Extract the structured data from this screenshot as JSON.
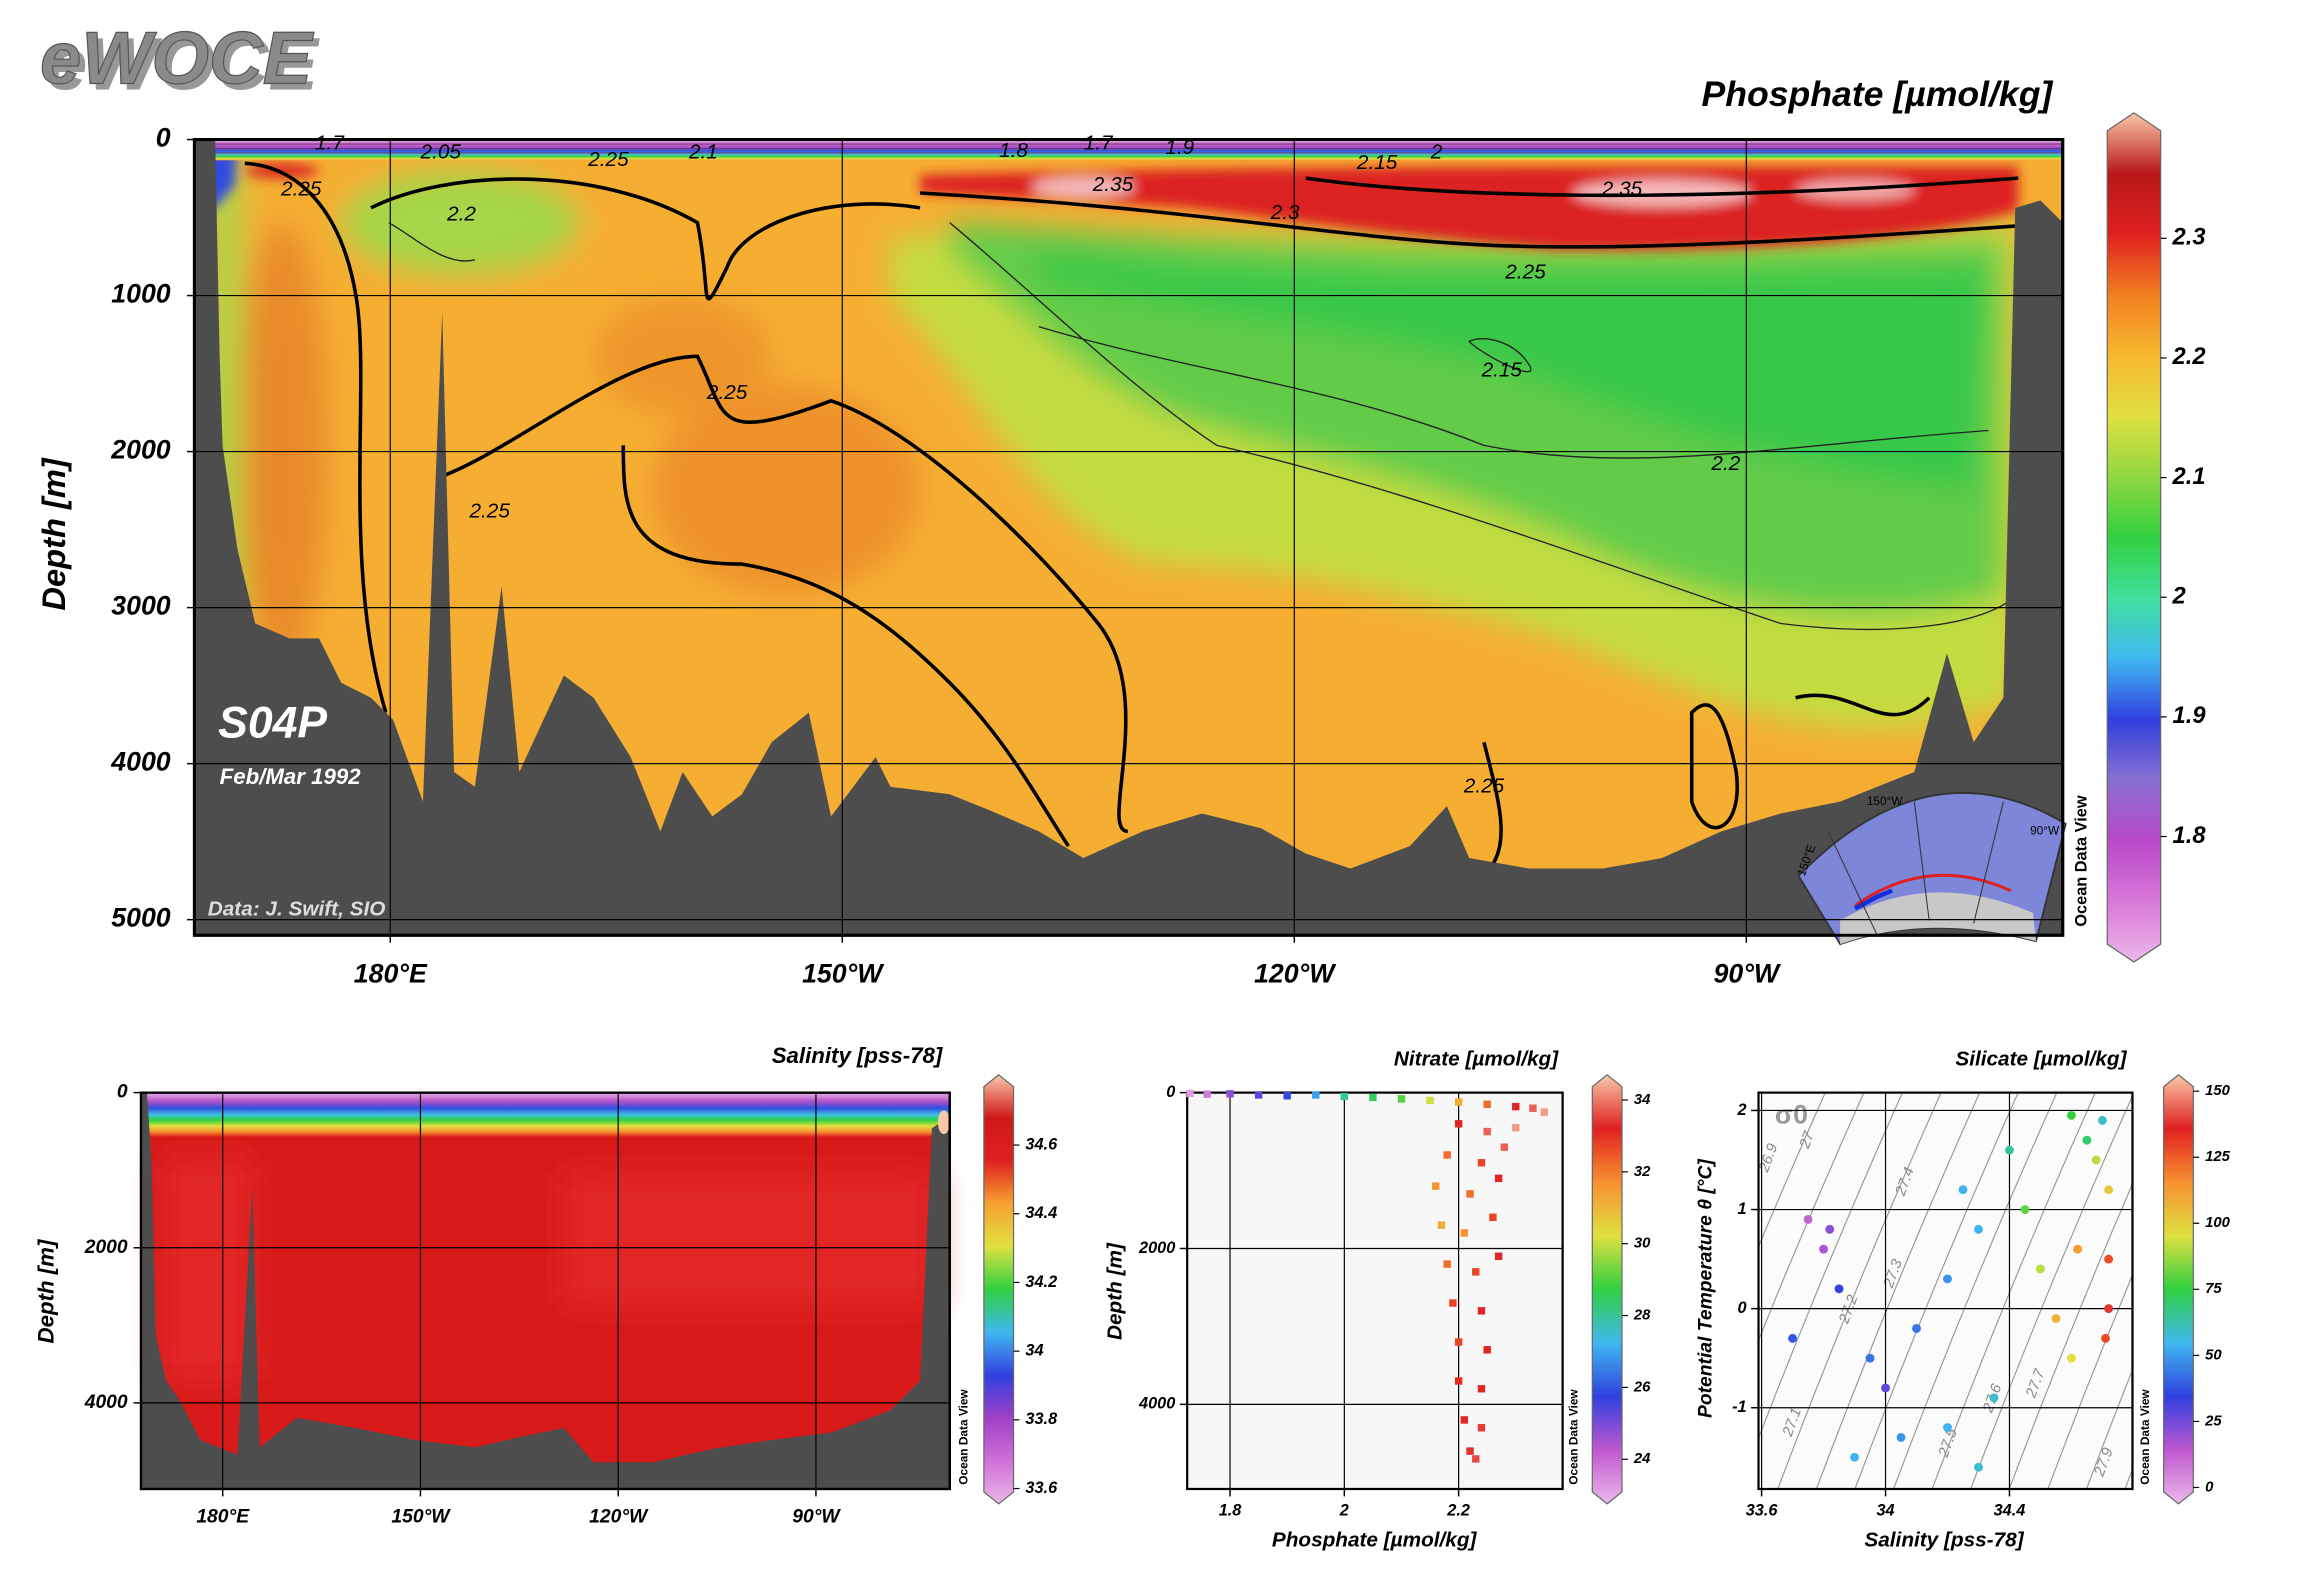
{
  "logo": "eWOCE",
  "chart_data": [
    {
      "type": "section",
      "title": "Phosphate [µmol/kg]",
      "y_label": "Depth [m]",
      "xlim": [
        167,
        291
      ],
      "xticks": [
        {
          "value": 180,
          "label": "180°E"
        },
        {
          "value": 210,
          "label": "150°W"
        },
        {
          "value": 240,
          "label": "120°W"
        },
        {
          "value": 270,
          "label": "90°W"
        }
      ],
      "ylim": [
        0,
        5100
      ],
      "yticks": [
        0,
        1000,
        2000,
        3000,
        4000,
        5000
      ],
      "y_inverted": true,
      "grid": true,
      "clim": [
        1.71,
        2.39
      ],
      "cticks": [
        1.8,
        1.9,
        2,
        2.1,
        2.2,
        2.3
      ],
      "colormap": [
        "#eab8ea",
        "#d878d8",
        "#b848c8",
        "#8870d0",
        "#3040e0",
        "#40b8f0",
        "#40e0a0",
        "#30d040",
        "#90d840",
        "#e0e040",
        "#f8b830",
        "#f08020",
        "#e02020",
        "#b81818",
        "#f8c8a8"
      ],
      "contour_labels": [
        1.7,
        2.05,
        2.25,
        2.1,
        1.8,
        1.7,
        1.9,
        2.15,
        2,
        2.35,
        2.35,
        2.3,
        2.25,
        2.2,
        2.25,
        2.15,
        2.25,
        2.25,
        2.2,
        2.25
      ],
      "station": "S04P",
      "date": "Feb/Mar 1992",
      "source": "Data: J. Swift, SIO",
      "inset_labels": [
        "150°W",
        "90°W",
        "150°E"
      ],
      "credit": "Ocean Data View"
    },
    {
      "type": "section",
      "title": "Salinity [pss-78]",
      "y_label": "Depth [m]",
      "xlim": [
        167.6,
        290.3
      ],
      "xticks": [
        {
          "value": 180,
          "label": "180°E"
        },
        {
          "value": 210,
          "label": "150°W"
        },
        {
          "value": 240,
          "label": "120°W"
        },
        {
          "value": 270,
          "label": "90°W"
        }
      ],
      "ylim": [
        0,
        5110
      ],
      "yticks": [
        0,
        2000,
        4000
      ],
      "y_inverted": true,
      "grid": true,
      "clim": [
        33.59,
        34.77
      ],
      "cticks": [
        33.6,
        33.8,
        34,
        34.2,
        34.4,
        34.6
      ],
      "colormap": [
        "#eab8ea",
        "#d070d8",
        "#a040c8",
        "#3040e0",
        "#40b8f0",
        "#30d040",
        "#e0e040",
        "#f8a030",
        "#e02020",
        "#d01818",
        "#f8c8a8"
      ],
      "credit": "Ocean Data View"
    },
    {
      "type": "scatter",
      "title": "Nitrate [µmol/kg]",
      "x_label": "Phosphate [µmol/kg]",
      "y_label": "Depth [m]",
      "xlim": [
        1.725,
        2.382
      ],
      "xticks": [
        1.8,
        2,
        2.2
      ],
      "ylim": [
        0,
        5086
      ],
      "yticks": [
        0,
        2000,
        4000
      ],
      "y_inverted": true,
      "grid": true,
      "marker": "square",
      "clim": [
        23.09,
        34.37
      ],
      "cticks": [
        24,
        26,
        28,
        30,
        32,
        34
      ],
      "colormap": [
        "#eab8ea",
        "#c058d0",
        "#3040e0",
        "#40b8f0",
        "#30d040",
        "#e0e040",
        "#f89030",
        "#e02020",
        "#f8c8a8"
      ],
      "series": [
        {
          "x": [
            1.73,
            1.76,
            1.8,
            1.85,
            1.9,
            1.95,
            2.0,
            2.05,
            2.1,
            2.15,
            2.2,
            2.25,
            2.3,
            2.33,
            2.35,
            2.2,
            2.25,
            2.3,
            2.18,
            2.24,
            2.28,
            2.16,
            2.22,
            2.27,
            2.17,
            2.21,
            2.26,
            2.18,
            2.23,
            2.27,
            2.19,
            2.24,
            2.2,
            2.25,
            2.2,
            2.24,
            2.21,
            2.24,
            2.22,
            2.23
          ],
          "values": [
            10,
            20,
            15,
            30,
            40,
            30,
            50,
            60,
            80,
            100,
            120,
            150,
            180,
            200,
            250,
            400,
            500,
            450,
            800,
            900,
            700,
            1200,
            1300,
            1100,
            1700,
            1800,
            1600,
            2200,
            2300,
            2100,
            2700,
            2800,
            3200,
            3300,
            3700,
            3800,
            4200,
            4300,
            4600,
            4700
          ],
          "color_values": [
            23.5,
            24,
            25,
            25.5,
            26,
            27,
            28,
            28.5,
            29,
            30,
            31,
            32,
            33,
            33.5,
            34,
            33,
            33.5,
            34,
            32,
            32.5,
            33.5,
            31.5,
            32,
            33,
            31,
            31.5,
            32.5,
            32,
            32.5,
            33,
            32.5,
            33,
            32.5,
            33,
            32.8,
            33,
            33,
            33.2,
            33.1,
            33.3
          ]
        }
      ],
      "credit": "Ocean Data View"
    },
    {
      "type": "scatter",
      "title": "Silicate [µmol/kg]",
      "x_label": "Salinity [pss-78]",
      "y_label": "Potential Temperature θ [°C]",
      "xlim": [
        33.59,
        34.797
      ],
      "xticks": [
        33.6,
        34,
        34.4
      ],
      "ylim": [
        -1.82,
        2.18
      ],
      "yticks": [
        -1,
        0,
        1,
        2
      ],
      "y_inverted": false,
      "grid": true,
      "marker": "circle",
      "clim": [
        -1.7,
        151.7
      ],
      "cticks": [
        0,
        25,
        50,
        75,
        100,
        125,
        150
      ],
      "colormap": [
        "#eab8ea",
        "#c058d0",
        "#3040e0",
        "#40b8f0",
        "#30d040",
        "#e0e040",
        "#f89030",
        "#e02020",
        "#f8c8a8"
      ],
      "series": [
        {
          "x": [
            34.7,
            34.65,
            34.68,
            34.72,
            34.72,
            34.72,
            34.71,
            34.6,
            34.4,
            34.3,
            34.2,
            34.1,
            34.0,
            34.05,
            34.2,
            34.35,
            33.8,
            33.75,
            33.85,
            33.95,
            33.9,
            33.7,
            34.5,
            34.45,
            34.55,
            34.62,
            34.3,
            33.82,
            34.25,
            34.6
          ],
          "values": [
            1.9,
            1.7,
            1.5,
            1.2,
            0.5,
            0,
            -0.3,
            1.95,
            1.6,
            0.8,
            0.3,
            -0.2,
            -0.8,
            -1.3,
            -1.2,
            -0.9,
            0.6,
            0.9,
            0.2,
            -0.5,
            -1.5,
            -0.3,
            0.4,
            1.0,
            -0.1,
            0.6,
            -1.6,
            0.8,
            1.2,
            -0.5
          ],
          "color_values": [
            60,
            70,
            90,
            100,
            125,
            135,
            125,
            75,
            65,
            55,
            50,
            45,
            30,
            50,
            55,
            60,
            20,
            15,
            35,
            45,
            55,
            40,
            90,
            80,
            105,
            110,
            60,
            25,
            55,
            95
          ]
        }
      ],
      "isopycnal_labels": [
        26.9,
        27,
        27.1,
        27.2,
        27.3,
        27.4,
        27.5,
        27.6,
        27.7,
        27.9
      ],
      "isopycnal_name": "σ0",
      "credit": "Ocean Data View"
    }
  ]
}
